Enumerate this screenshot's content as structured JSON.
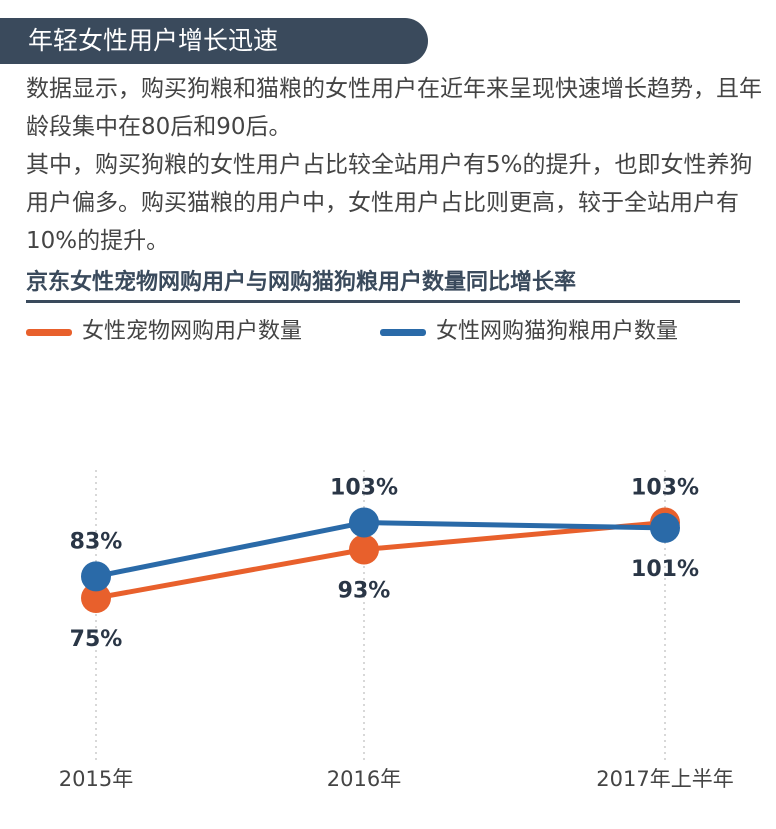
{
  "header": {
    "title": "年轻女性用户增长迅速"
  },
  "intro": {
    "paragraph1": "数据显示，购买狗粮和猫粮的女性用户在近年来呈现快速增长趋势，且年龄段集中在80后和90后。",
    "paragraph2": "其中，购买狗粮的女性用户占比较全站用户有5%的提升，也即女性养狗用户偏多。购买猫粮的用户中，女性用户占比则更高，较于全站用户有10%的提升。"
  },
  "chart_data": {
    "type": "line",
    "title": "京东女性宠物网购用户与网购猫狗粮用户数量同比增长率",
    "categories": [
      "2015年",
      "2016年",
      "2017年上半年"
    ],
    "ylim": [
      0,
      160
    ],
    "grid": "vertical dotted lines at categories",
    "legend_position": "top",
    "series": [
      {
        "name": "女性宠物网购用户数量",
        "color": "#e8602c",
        "values": [
          75,
          93,
          103
        ],
        "labels": [
          "75%",
          "93%",
          "103%"
        ]
      },
      {
        "name": "女性网购猫狗粮用户数量",
        "color": "#2a6aa8",
        "values": [
          83,
          103,
          101
        ],
        "labels": [
          "83%",
          "103%",
          "101%"
        ]
      }
    ]
  }
}
